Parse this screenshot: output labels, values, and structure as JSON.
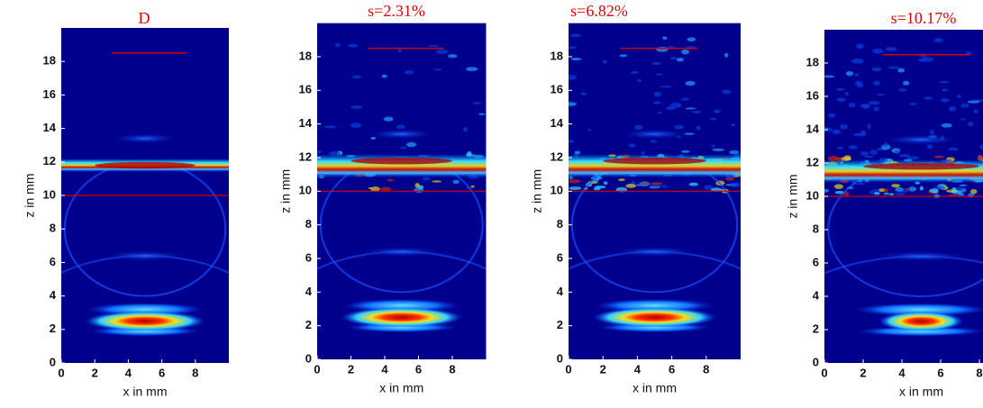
{
  "chart_data": [
    {
      "type": "heatmap",
      "title": "D",
      "x_label": "x in mm",
      "y_label": "z in mm",
      "xlim": [
        0,
        10
      ],
      "ylim": [
        0,
        20
      ],
      "xticks": [
        0,
        2,
        4,
        6,
        8
      ],
      "yticks": [
        0,
        2,
        4,
        6,
        8,
        10,
        12,
        14,
        16,
        18
      ]
    },
    {
      "type": "heatmap",
      "title": "s=2.31%",
      "x_label": "x in mm",
      "y_label": "z in mm",
      "xlim": [
        0,
        10
      ],
      "ylim": [
        0,
        20
      ],
      "xticks": [
        0,
        2,
        4,
        6,
        8
      ],
      "yticks": [
        0,
        2,
        4,
        6,
        8,
        10,
        12,
        14,
        16,
        18
      ]
    },
    {
      "type": "heatmap",
      "title": "s=6.82%",
      "x_label": "x in mm",
      "y_label": "z in mm",
      "xlim": [
        0,
        10
      ],
      "ylim": [
        0,
        20
      ],
      "xticks": [
        0,
        2,
        4,
        6,
        8
      ],
      "yticks": [
        0,
        2,
        4,
        6,
        8,
        10,
        12,
        14,
        16,
        18
      ]
    },
    {
      "type": "heatmap",
      "title": "s=10.17%",
      "x_label": "x in mm",
      "y_label": "z in mm",
      "xlim": [
        0,
        10
      ],
      "ylim": [
        0,
        20
      ],
      "xticks": [
        0,
        2,
        4,
        6,
        8
      ],
      "yticks": [
        0,
        2,
        4,
        6,
        8,
        10,
        12,
        14,
        16,
        18
      ]
    }
  ]
}
